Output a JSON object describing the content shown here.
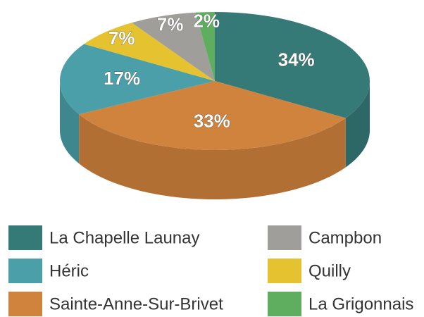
{
  "chart_data": {
    "type": "pie3d",
    "categories": [
      "La Chapelle Launay",
      "Sainte-Anne-Sur-Brivet",
      "Héric",
      "Quilly",
      "Campbon",
      "La Grigonnais"
    ],
    "values": [
      34,
      33,
      17,
      7,
      7,
      2
    ],
    "value_labels": [
      "34%",
      "33%",
      "17%",
      "7%",
      "7%",
      "2%"
    ],
    "colors": [
      "#367a78",
      "#d0833c",
      "#4a9fa8",
      "#e5c22f",
      "#a09e9b",
      "#5fae5f"
    ],
    "legend": "bottom"
  }
}
